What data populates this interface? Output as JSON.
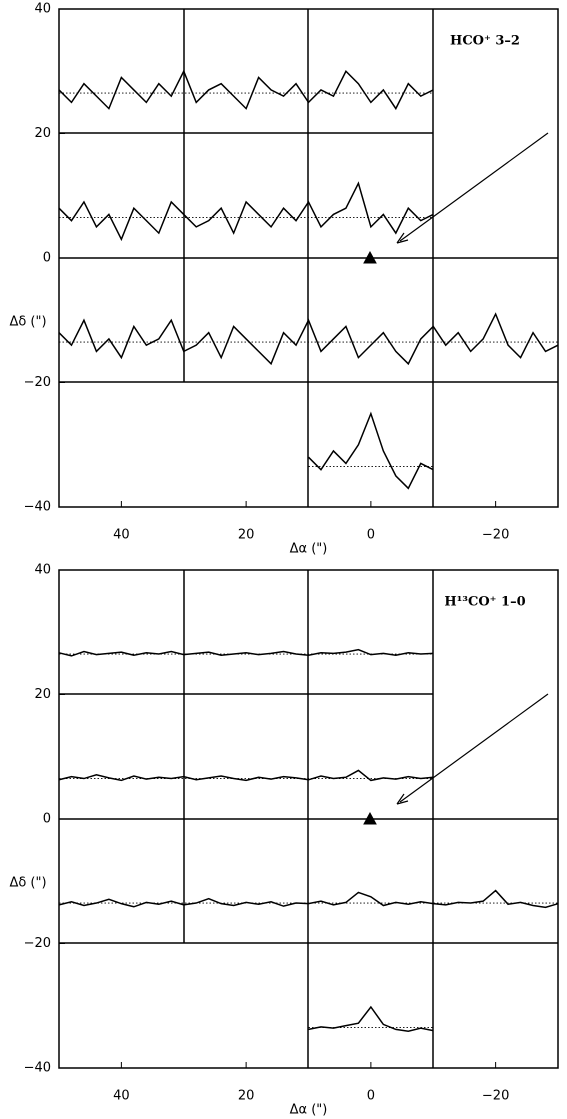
{
  "chart_data": [
    {
      "type": "line",
      "title": "HCO⁺ 3–2",
      "x_label": "Δα (\")",
      "y_label": "Δδ (\")",
      "xlim": [
        50,
        -30
      ],
      "ylim": [
        -40,
        40
      ],
      "xticks": [
        40,
        20,
        0,
        {
          "value": -20,
          "label": "−20"
        }
      ],
      "yticks": [
        {
          "value": -40,
          "label": "−40"
        },
        {
          "value": -20,
          "label": "−20"
        },
        0,
        20,
        40
      ],
      "color": "#000000",
      "series": [
        {
          "x": [
            50,
            48,
            46,
            44,
            42,
            40,
            38,
            36,
            34,
            32,
            30,
            28,
            26,
            24,
            22,
            20,
            18,
            16,
            14,
            12,
            10,
            8,
            6,
            4,
            2,
            0,
            -2,
            -4,
            -6,
            -8,
            -10
          ],
          "baseline": 26.5,
          "values": [
            27,
            25,
            28,
            26,
            24,
            29,
            27,
            25,
            28,
            26,
            30,
            25,
            27,
            28,
            26,
            24,
            29,
            27,
            26,
            28,
            25,
            27,
            26,
            30,
            28,
            25,
            27,
            24,
            28,
            26,
            27
          ]
        },
        {
          "x": [
            50,
            48,
            46,
            44,
            42,
            40,
            38,
            36,
            34,
            32,
            30,
            28,
            26,
            24,
            22,
            20,
            18,
            16,
            14,
            12,
            10,
            8,
            6,
            4,
            2,
            0,
            -2,
            -4,
            -6,
            -8,
            -10
          ],
          "baseline": 6.5,
          "values": [
            8,
            6,
            9,
            5,
            7,
            3,
            8,
            6,
            4,
            9,
            7,
            5,
            6,
            8,
            4,
            9,
            7,
            5,
            8,
            6,
            9,
            5,
            7,
            8,
            12,
            5,
            7,
            4,
            8,
            6,
            7
          ]
        },
        {
          "x": [
            50,
            48,
            46,
            44,
            42,
            40,
            38,
            36,
            34,
            32,
            30,
            28,
            26,
            24,
            22,
            20,
            18,
            16,
            14,
            12,
            10,
            8,
            6,
            4,
            2,
            0,
            -2,
            -4,
            -6,
            -8,
            -10,
            -12,
            -14,
            -16,
            -18,
            -20,
            -22,
            -24,
            -26,
            -28,
            -30
          ],
          "baseline": -13.5,
          "values": [
            -12,
            -14,
            -10,
            -15,
            -13,
            -16,
            -11,
            -14,
            -13,
            -10,
            -15,
            -14,
            -12,
            -16,
            -11,
            -13,
            -15,
            -17,
            -12,
            -14,
            -10,
            -15,
            -13,
            -11,
            -16,
            -14,
            -12,
            -15,
            -17,
            -13,
            -11,
            -14,
            -12,
            -15,
            -13,
            -9,
            -14,
            -16,
            -12,
            -15,
            -14
          ]
        },
        {
          "x": [
            10,
            8,
            6,
            4,
            2,
            0,
            -2,
            -4,
            -6,
            -8,
            -10
          ],
          "baseline": -33.5,
          "values": [
            -32,
            -34,
            -31,
            -33,
            -30,
            -25,
            -31,
            -35,
            -37,
            -33,
            -34
          ]
        }
      ]
    },
    {
      "type": "line",
      "title": "H¹³CO⁺ 1–0",
      "x_label": "Δα (\")",
      "y_label": "Δδ (\")",
      "xlim": [
        50,
        -30
      ],
      "ylim": [
        -40,
        40
      ],
      "xticks": [
        40,
        20,
        0,
        {
          "value": -20,
          "label": "−20"
        }
      ],
      "yticks": [
        {
          "value": -40,
          "label": "−40"
        },
        {
          "value": -20,
          "label": "−20"
        },
        0,
        20,
        40
      ],
      "color": "#000000",
      "series": [
        {
          "x": [
            50,
            48,
            46,
            44,
            42,
            40,
            38,
            36,
            34,
            32,
            30,
            28,
            26,
            24,
            22,
            20,
            18,
            16,
            14,
            12,
            10,
            8,
            6,
            4,
            2,
            0,
            -2,
            -4,
            -6,
            -8,
            -10
          ],
          "baseline": 26.5,
          "values": [
            26.7,
            26.2,
            26.9,
            26.4,
            26.6,
            26.8,
            26.3,
            26.7,
            26.5,
            26.9,
            26.4,
            26.6,
            26.8,
            26.3,
            26.5,
            26.7,
            26.4,
            26.6,
            26.9,
            26.5,
            26.3,
            26.7,
            26.6,
            26.8,
            27.2,
            26.4,
            26.6,
            26.3,
            26.7,
            26.5,
            26.6
          ]
        },
        {
          "x": [
            50,
            48,
            46,
            44,
            42,
            40,
            38,
            36,
            34,
            32,
            30,
            28,
            26,
            24,
            22,
            20,
            18,
            16,
            14,
            12,
            10,
            8,
            6,
            4,
            2,
            0,
            -2,
            -4,
            -6,
            -8,
            -10
          ],
          "baseline": 6.5,
          "values": [
            6.3,
            6.8,
            6.5,
            7.1,
            6.6,
            6.2,
            6.9,
            6.4,
            6.7,
            6.5,
            6.8,
            6.3,
            6.6,
            6.9,
            6.5,
            6.2,
            6.7,
            6.4,
            6.8,
            6.6,
            6.3,
            6.9,
            6.5,
            6.7,
            7.8,
            6.2,
            6.6,
            6.4,
            6.8,
            6.5,
            6.7
          ]
        },
        {
          "x": [
            50,
            48,
            46,
            44,
            42,
            40,
            38,
            36,
            34,
            32,
            30,
            28,
            26,
            24,
            22,
            20,
            18,
            16,
            14,
            12,
            10,
            8,
            6,
            4,
            2,
            0,
            -2,
            -4,
            -6,
            -8,
            -10,
            -12,
            -14,
            -16,
            -18,
            -20,
            -22,
            -24,
            -26,
            -28,
            -30
          ],
          "baseline": -13.5,
          "values": [
            -13.8,
            -13.3,
            -13.9,
            -13.5,
            -12.9,
            -13.6,
            -14.1,
            -13.4,
            -13.7,
            -13.2,
            -13.8,
            -13.5,
            -12.8,
            -13.6,
            -13.9,
            -13.4,
            -13.7,
            -13.3,
            -14,
            -13.5,
            -13.6,
            -13.2,
            -13.8,
            -13.4,
            -11.8,
            -12.5,
            -13.9,
            -13.4,
            -13.7,
            -13.3,
            -13.6,
            -13.8,
            -13.4,
            -13.5,
            -13.2,
            -11.5,
            -13.7,
            -13.4,
            -13.9,
            -14.2,
            -13.6
          ]
        },
        {
          "x": [
            10,
            8,
            6,
            4,
            2,
            0,
            -2,
            -4,
            -6,
            -8,
            -10
          ],
          "baseline": -33.5,
          "values": [
            -33.8,
            -33.4,
            -33.6,
            -33.2,
            -32.8,
            -30.2,
            -33,
            -33.8,
            -34.1,
            -33.6,
            -34
          ]
        }
      ]
    }
  ]
}
